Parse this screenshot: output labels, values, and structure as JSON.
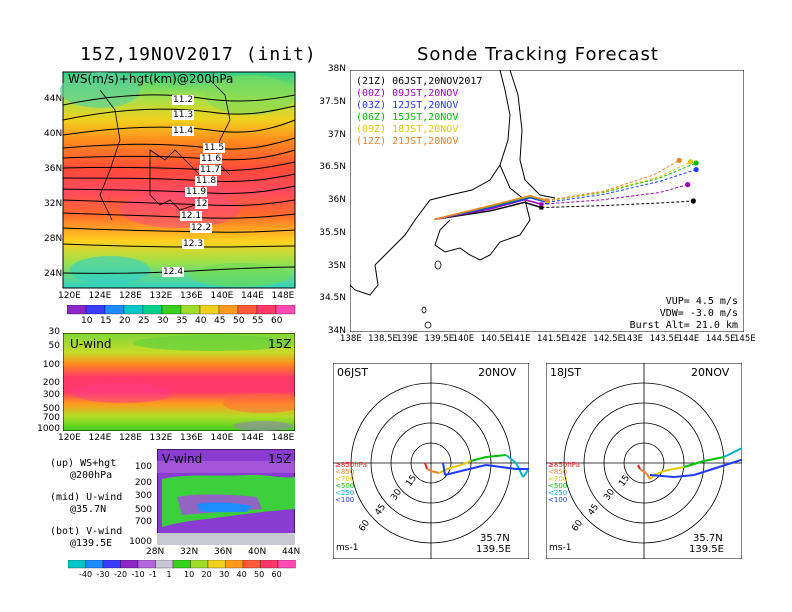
{
  "left": {
    "title": "15Z,19NOV2017 (init)",
    "map": {
      "label": "WS(m/s)+hgt(km)@200hPa",
      "lat_ticks": [
        "44N",
        "40N",
        "36N",
        "32N",
        "28N",
        "24N"
      ],
      "lon_ticks": [
        "120E",
        "124E",
        "128E",
        "132E",
        "136E",
        "140E",
        "144E",
        "148E"
      ],
      "contours": [
        "11.2",
        "11.3",
        "11.4",
        "11.5",
        "11.6",
        "11.7",
        "11.8",
        "11.9",
        "12",
        "12.1",
        "12.2",
        "12.3",
        "12.4"
      ],
      "colorbar": [
        "10",
        "15",
        "20",
        "25",
        "30",
        "35",
        "40",
        "45",
        "50",
        "55",
        "60"
      ]
    },
    "uwind": {
      "label": "U-wind",
      "time": "15Z",
      "p_ticks": [
        "30",
        "50",
        "100",
        "200",
        "300",
        "500",
        "700",
        "1000"
      ],
      "lon_ticks": [
        "120E",
        "124E",
        "128E",
        "132E",
        "136E",
        "140E",
        "144E",
        "148E"
      ]
    },
    "vwind": {
      "label": "V-wind",
      "time": "15Z",
      "p_ticks": [
        "100",
        "200",
        "300",
        "500",
        "700",
        "1000"
      ],
      "lat_ticks": [
        "28N",
        "32N",
        "36N",
        "40N",
        "44N"
      ],
      "colorbar": [
        "-40",
        "-30",
        "-20",
        "-10",
        "-1",
        "1",
        "10",
        "20",
        "30",
        "40",
        "50",
        "60"
      ]
    },
    "notes": {
      "up1": "(up) WS+hgt",
      "up2": "@200hPa",
      "mid1": "(mid) U-wind",
      "mid2": "@35.7N",
      "bot1": "(bot) V-wind",
      "bot2": "@139.5E"
    }
  },
  "right": {
    "title": "Sonde Tracking Forecast",
    "lat_ticks": [
      "38N",
      "37.5N",
      "37N",
      "36.5N",
      "36N",
      "35.5N",
      "35N",
      "34.5N",
      "34N"
    ],
    "lon_ticks": [
      "138E",
      "138.5E",
      "139E",
      "139.5E",
      "140E",
      "140.5E",
      "141E",
      "141.5E",
      "142E",
      "142.5E",
      "143E",
      "143.5E",
      "144E",
      "144.5E",
      "145E"
    ],
    "legend": [
      {
        "text": "(21Z) 06JST,20NOV2017",
        "color": "#000000"
      },
      {
        "text": "(00Z) 09JST,20NOV",
        "color": "#a000c0"
      },
      {
        "text": "(03Z) 12JST,20NOV",
        "color": "#1e3cff"
      },
      {
        "text": "(06Z) 15JST,20NOV",
        "color": "#00c000"
      },
      {
        "text": "(09Z) 18JST,20NOV",
        "color": "#e6c800"
      },
      {
        "text": "(12Z) 21JST,20NOV",
        "color": "#f08228"
      }
    ],
    "params": {
      "vup": "VUP= 4.5 m/s",
      "vdw": "VDW= -3.0 m/s",
      "burst": "Burst Alt= 21.0 km"
    }
  },
  "hodographs": [
    {
      "time": "06JST",
      "date": "20NOV",
      "lat": "35.7N",
      "lon": "139.5E",
      "unit": "ms-1",
      "rings": [
        "15",
        "30",
        "45",
        "60"
      ],
      "levels": [
        {
          "t": "≥850hPa",
          "c": "#ff2020"
        },
        {
          "t": "<850",
          "c": "#f08228"
        },
        {
          "t": "<700",
          "c": "#e6c800"
        },
        {
          "t": "<500",
          "c": "#00c000"
        },
        {
          "t": "<250",
          "c": "#00b4dc"
        },
        {
          "t": "<100",
          "c": "#1e3cff"
        }
      ]
    },
    {
      "time": "18JST",
      "date": "20NOV",
      "lat": "35.7N",
      "lon": "139.5E",
      "unit": "ms-1",
      "rings": [
        "15",
        "30",
        "45",
        "60"
      ],
      "levels": [
        {
          "t": "≥850hPa",
          "c": "#ff2020"
        },
        {
          "t": "<850",
          "c": "#f08228"
        },
        {
          "t": "<700",
          "c": "#e6c800"
        },
        {
          "t": "<500",
          "c": "#00c000"
        },
        {
          "t": "<250",
          "c": "#00b4dc"
        },
        {
          "t": "<100",
          "c": "#1e3cff"
        }
      ]
    }
  ],
  "chart_data": [
    {
      "type": "heatmap",
      "title": "15Z,19NOV2017 (init)",
      "label": "WS(m/s)+hgt(km)@200hPa",
      "xlim": [
        120,
        150
      ],
      "ylim": [
        22,
        48
      ],
      "contour_levels_km": [
        11.2,
        11.3,
        11.4,
        11.5,
        11.6,
        11.7,
        11.8,
        11.9,
        12.0,
        12.1,
        12.2,
        12.3,
        12.4
      ],
      "colorbar_ms": [
        10,
        15,
        20,
        25,
        30,
        35,
        40,
        45,
        50,
        55,
        60
      ]
    },
    {
      "type": "line",
      "title": "Sonde Tracking Forecast",
      "xlim": [
        138,
        145
      ],
      "ylim": [
        34,
        38
      ],
      "series": [
        {
          "name": "(21Z) 06JST,20NOV2017",
          "x": [
            139.5,
            140.5,
            141.1,
            141.4,
            142.5,
            143.5,
            144.1
          ],
          "y": [
            35.72,
            35.85,
            35.98,
            35.9,
            35.93,
            35.97,
            36.0
          ]
        },
        {
          "name": "(00Z) 09JST,20NOV",
          "x": [
            139.5,
            140.5,
            141.1,
            141.4,
            142.5,
            143.5,
            144.0
          ],
          "y": [
            35.72,
            35.88,
            36.02,
            35.95,
            36.02,
            36.13,
            36.25
          ]
        },
        {
          "name": "(03Z) 12JST,20NOV",
          "x": [
            139.5,
            140.5,
            141.2,
            141.5,
            142.5,
            143.5,
            144.15
          ],
          "y": [
            35.72,
            35.9,
            36.05,
            35.98,
            36.1,
            36.3,
            36.48
          ]
        },
        {
          "name": "(06Z) 15JST,20NOV",
          "x": [
            139.5,
            140.5,
            141.2,
            141.5,
            142.5,
            143.5,
            144.15
          ],
          "y": [
            35.72,
            35.92,
            36.07,
            36.0,
            36.13,
            36.35,
            36.58
          ]
        },
        {
          "name": "(09Z) 18JST,20NOV",
          "x": [
            139.5,
            140.5,
            141.2,
            141.5,
            142.5,
            143.5,
            144.05
          ],
          "y": [
            35.72,
            35.93,
            36.08,
            36.0,
            36.14,
            36.37,
            36.6
          ]
        },
        {
          "name": "(12Z) 21JST,20NOV",
          "x": [
            139.5,
            140.5,
            141.2,
            141.5,
            142.5,
            143.4,
            143.85
          ],
          "y": [
            35.72,
            35.93,
            36.08,
            36.01,
            36.15,
            36.4,
            36.62
          ]
        }
      ]
    }
  ]
}
